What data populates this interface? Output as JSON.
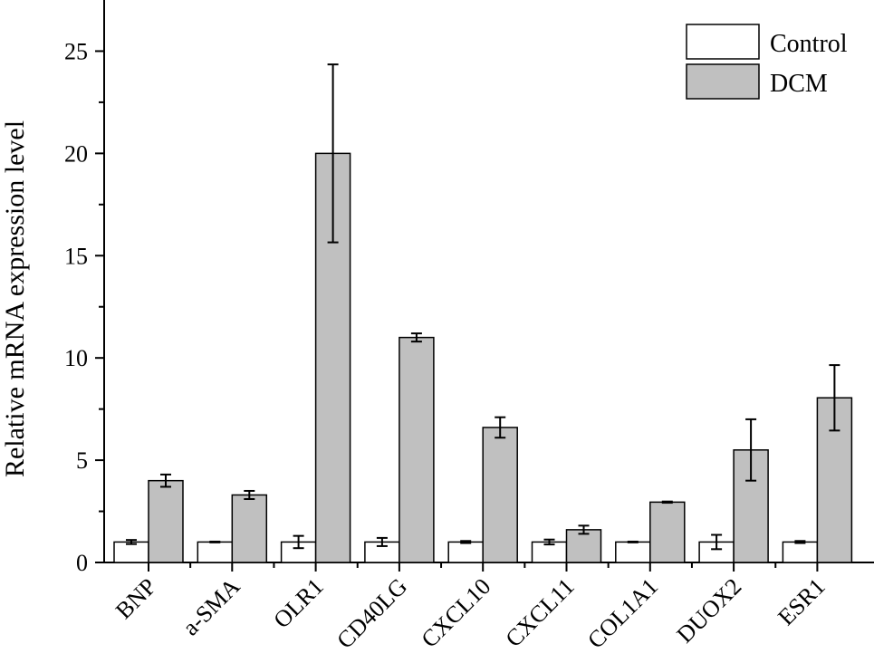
{
  "chart_data": {
    "type": "bar",
    "title": "",
    "xlabel": "",
    "ylabel": "Relative mRNA expression level",
    "ylim": [
      0,
      27.5
    ],
    "yticks": [
      0,
      5,
      10,
      15,
      20,
      25
    ],
    "grid": false,
    "legend_position": "top-right",
    "categories": [
      "BNP",
      "a-SMA",
      "OLR1",
      "CD40LG",
      "CXCL10",
      "CXCL11",
      "COL1A1",
      "DUOX2",
      "ESR1"
    ],
    "series": [
      {
        "name": "Control",
        "color": "#ffffff",
        "values": [
          1.0,
          1.0,
          1.0,
          1.0,
          1.0,
          1.0,
          1.0,
          1.0,
          1.0
        ],
        "errors": [
          0.1,
          0.02,
          0.3,
          0.2,
          0.05,
          0.12,
          0.02,
          0.35,
          0.05
        ]
      },
      {
        "name": "DCM",
        "color": "#c0c0c0",
        "values": [
          4.0,
          3.3,
          20.0,
          11.0,
          6.6,
          1.6,
          2.95,
          5.5,
          8.05
        ],
        "errors": [
          0.3,
          0.2,
          4.35,
          0.2,
          0.5,
          0.2,
          0.03,
          1.5,
          1.6
        ]
      }
    ]
  }
}
